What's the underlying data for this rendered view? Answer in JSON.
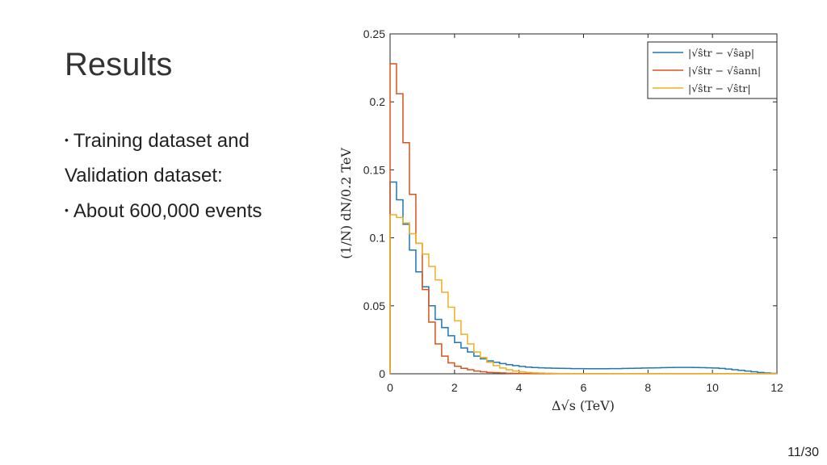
{
  "slide": {
    "title": "Results",
    "bullets": [
      {
        "text": "Training dataset and",
        "has_dot": true
      },
      {
        "text": "Validation dataset:",
        "has_dot": false
      },
      {
        "text": "About 600,000 events",
        "has_dot": true
      }
    ],
    "page_number": "11/30"
  },
  "colors": {
    "ap": "#1f77b4",
    "ann": "#d95319",
    "tr": "#edb120",
    "axis": "#262626"
  },
  "chart_data": {
    "type": "line",
    "title": "",
    "xlabel": "Δ√s (TeV)",
    "ylabel": "(1/N) dN/0.2 TeV",
    "xlim": [
      0,
      12
    ],
    "ylim": [
      0,
      0.25
    ],
    "xticks": [
      0,
      2,
      4,
      6,
      8,
      10,
      12
    ],
    "yticks": [
      0,
      0.05,
      0.1,
      0.15,
      0.2,
      0.25
    ],
    "ytick_labels": [
      "0",
      "0.05",
      "0.1",
      "0.15",
      "0.2",
      "0.25"
    ],
    "legend_position": "top-right",
    "bin_width": 0.2,
    "series": [
      {
        "name": "|√ŝtr − √ŝap|",
        "color_key": "ap",
        "values": [
          0.141,
          0.128,
          0.11,
          0.091,
          0.075,
          0.064,
          0.05,
          0.04,
          0.034,
          0.028,
          0.023,
          0.019,
          0.016,
          0.013,
          0.011,
          0.0095,
          0.0085,
          0.0075,
          0.0067,
          0.006,
          0.0054,
          0.0049,
          0.0046,
          0.0044,
          0.0042,
          0.0041,
          0.004,
          0.0039,
          0.0038,
          0.0038,
          0.0037,
          0.0037,
          0.0037,
          0.0037,
          0.0038,
          0.0038,
          0.0039,
          0.004,
          0.0041,
          0.0042,
          0.0043,
          0.0044,
          0.0045,
          0.0046,
          0.0047,
          0.0047,
          0.0047,
          0.0046,
          0.0045,
          0.0044,
          0.0042,
          0.0039,
          0.0035,
          0.003,
          0.0025,
          0.002,
          0.0015,
          0.001,
          0.0006,
          0.0003
        ]
      },
      {
        "name": "|√ŝtr − √ŝann|",
        "color_key": "ann",
        "values": [
          0.228,
          0.206,
          0.17,
          0.132,
          0.096,
          0.062,
          0.038,
          0.022,
          0.013,
          0.008,
          0.0055,
          0.004,
          0.003,
          0.002,
          0.0015,
          0.001,
          0.0008,
          0.0006,
          0.0004,
          0.0003,
          0.0002,
          0.0002,
          0.0001,
          0.0001,
          0.0001,
          0.0001,
          0.0001,
          0.0001,
          0.0001,
          0.0001,
          0.0001,
          0.0001,
          0.0001,
          0.0001,
          0.0001,
          0.0001,
          0.0001,
          0.0001,
          0.0001,
          0.0001,
          0.0001,
          0.0001,
          0.0001,
          0.0001,
          0.0001,
          0.0001,
          0.0001,
          0.0001,
          0.0001,
          0.0001,
          0.0001,
          0.0001,
          0.0001,
          0.0001,
          0.0001,
          0.0001,
          0.0001,
          0.0001,
          0.0001,
          0.0001
        ]
      },
      {
        "name": "|√ŝtr − √ŝtr|",
        "color_key": "tr",
        "values": [
          0.117,
          0.115,
          0.111,
          0.103,
          0.096,
          0.088,
          0.079,
          0.069,
          0.06,
          0.049,
          0.039,
          0.029,
          0.022,
          0.016,
          0.012,
          0.0085,
          0.006,
          0.0042,
          0.003,
          0.002,
          0.0014,
          0.001,
          0.0007,
          0.0005,
          0.0004,
          0.0003,
          0.0002,
          0.0002,
          0.0001,
          0.0001,
          0.0001,
          0.0001,
          0.0001,
          0.0001,
          0.0001,
          0.0001,
          0.0001,
          0.0001,
          0.0001,
          0.0001,
          0.0001,
          0.0001,
          0.0001,
          0.0001,
          0.0001,
          0.0001,
          0.0001,
          0.0001,
          0.0001,
          0.0001,
          0.0001,
          0.0001,
          0.0001,
          0.0001,
          0.0001,
          0.0001,
          0.0001,
          0.0001,
          0.0001,
          0.0001
        ]
      }
    ]
  }
}
